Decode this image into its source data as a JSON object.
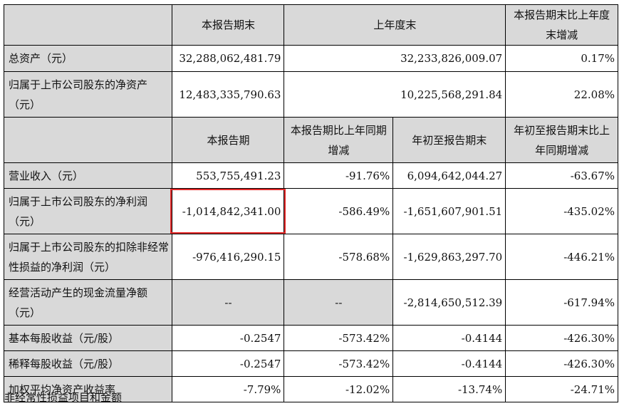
{
  "table": {
    "top_header": [
      "",
      "本报告期末",
      "上年度末",
      "本报告期末比上年度末增减"
    ],
    "top_rows": [
      {
        "label": "总资产（元）",
        "values": [
          "32,288,062,481.79",
          "32,233,826,009.07",
          "0.17%"
        ]
      },
      {
        "label": "归属于上市公司股东的净资产（元）",
        "values": [
          "12,483,335,790.63",
          "10,225,568,291.84",
          "22.08%"
        ]
      }
    ],
    "bottom_header": [
      "",
      "本报告期",
      "本报告期比上年同期增减",
      "年初至报告期末",
      "年初至报告期末比上年同期增减"
    ],
    "bottom_rows": [
      {
        "label": "营业收入（元）",
        "values": [
          "553,755,491.23",
          "-91.76%",
          "6,094,642,044.27",
          "-63.67%"
        ]
      },
      {
        "label": "归属于上市公司股东的净利润（元）",
        "values": [
          "-1,014,842,341.00",
          "-586.49%",
          "-1,651,607,901.51",
          "-435.02%"
        ]
      },
      {
        "label": "归属于上市公司股东的扣除非经常性损益的净利润（元）",
        "values": [
          "-976,416,290.15",
          "-578.68%",
          "-1,629,863,297.70",
          "-446.21%"
        ]
      },
      {
        "label": "经营活动产生的现金流量净额（元）",
        "values": [
          "--",
          "--",
          "-2,814,650,512.39",
          "-617.94%"
        ]
      },
      {
        "label": "基本每股收益（元/股）",
        "values": [
          "-0.2547",
          "-573.42%",
          "-0.4144",
          "-426.30%"
        ]
      },
      {
        "label": "稀释每股收益（元/股）",
        "values": [
          "-0.2547",
          "-573.42%",
          "-0.4144",
          "-426.30%"
        ]
      },
      {
        "label": "加权平均净资产收益率",
        "values": [
          "-7.79%",
          "-12.02%",
          "-13.74%",
          "-24.71%"
        ]
      }
    ]
  },
  "footnote": "非经常性损益项目和金额",
  "highlight_color": "#e52a2a"
}
